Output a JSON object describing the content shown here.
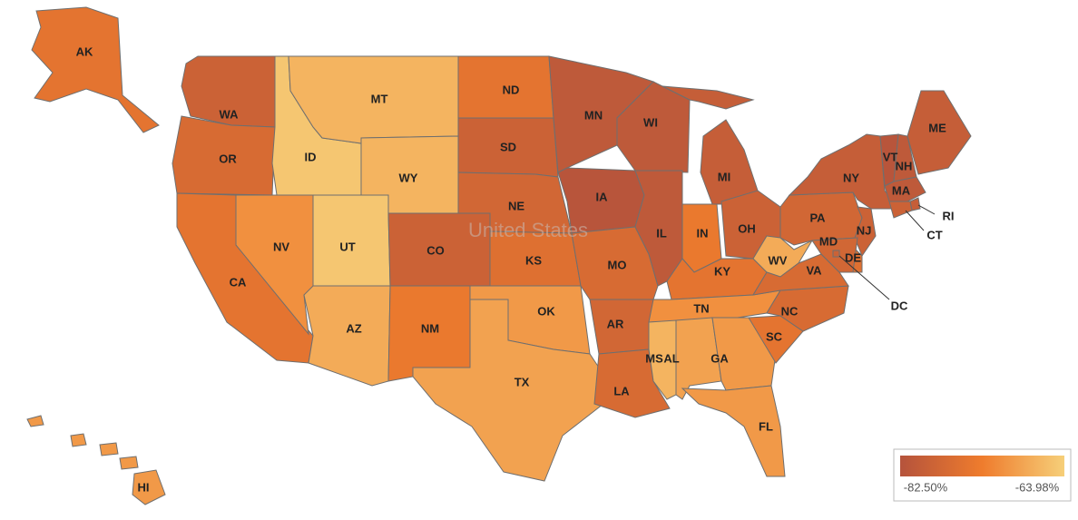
{
  "map": {
    "basemap_label": "United States",
    "color_scale": [
      "#b5533c",
      "#ef7c2d",
      "#f6cf79"
    ],
    "legend": {
      "ticks": [
        {
          "value": -82.5,
          "label": "-82.50%"
        },
        {
          "value": -63.98,
          "label": "-63.98%"
        }
      ]
    },
    "states": [
      {
        "code": "AK",
        "value": -75
      },
      {
        "code": "WA",
        "value": -79
      },
      {
        "code": "OR",
        "value": -77
      },
      {
        "code": "CA",
        "value": -75
      },
      {
        "code": "NV",
        "value": -71
      },
      {
        "code": "ID",
        "value": -65
      },
      {
        "code": "MT",
        "value": -67
      },
      {
        "code": "WY",
        "value": -67
      },
      {
        "code": "UT",
        "value": -65
      },
      {
        "code": "AZ",
        "value": -68
      },
      {
        "code": "CO",
        "value": -79
      },
      {
        "code": "NM",
        "value": -74
      },
      {
        "code": "ND",
        "value": -75
      },
      {
        "code": "SD",
        "value": -79
      },
      {
        "code": "NE",
        "value": -78
      },
      {
        "code": "KS",
        "value": -76
      },
      {
        "code": "OK",
        "value": -70
      },
      {
        "code": "TX",
        "value": -69
      },
      {
        "code": "MN",
        "value": -81
      },
      {
        "code": "IA",
        "value": -82
      },
      {
        "code": "MO",
        "value": -77
      },
      {
        "code": "AR",
        "value": -78
      },
      {
        "code": "LA",
        "value": -77
      },
      {
        "code": "WI",
        "value": -81
      },
      {
        "code": "IL",
        "value": -81
      },
      {
        "code": "MI",
        "value": -80
      },
      {
        "code": "IN",
        "value": -74
      },
      {
        "code": "OH",
        "value": -79
      },
      {
        "code": "KY",
        "value": -75
      },
      {
        "code": "TN",
        "value": -71
      },
      {
        "code": "MS",
        "value": -67
      },
      {
        "code": "AL",
        "value": -69
      },
      {
        "code": "GA",
        "value": -70
      },
      {
        "code": "FL",
        "value": -70
      },
      {
        "code": "SC",
        "value": -75
      },
      {
        "code": "NC",
        "value": -77
      },
      {
        "code": "WV",
        "value": -68
      },
      {
        "code": "VA",
        "value": -77
      },
      {
        "code": "PA",
        "value": -78
      },
      {
        "code": "NY",
        "value": -80
      },
      {
        "code": "VT",
        "value": -82
      },
      {
        "code": "NH",
        "value": -81
      },
      {
        "code": "ME",
        "value": -80
      },
      {
        "code": "MA",
        "value": -81
      },
      {
        "code": "RI",
        "value": -80
      },
      {
        "code": "CT",
        "value": -79
      },
      {
        "code": "NJ",
        "value": -79
      },
      {
        "code": "DE",
        "value": -76
      },
      {
        "code": "MD",
        "value": -78
      },
      {
        "code": "DC",
        "value": -79
      },
      {
        "code": "HI",
        "value": -70
      }
    ]
  }
}
